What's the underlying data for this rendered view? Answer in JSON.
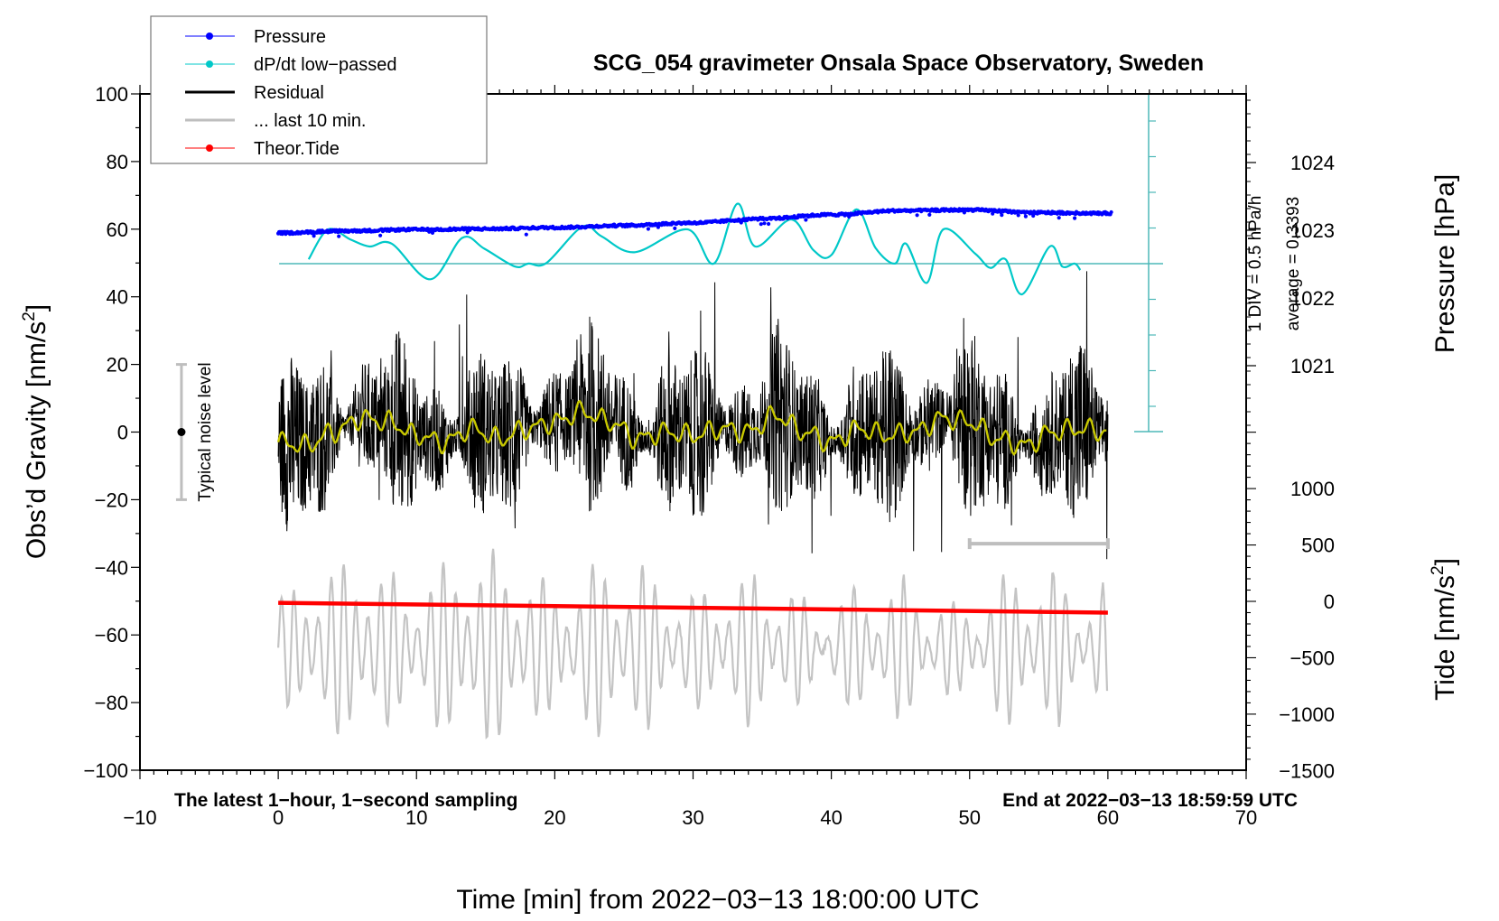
{
  "chart_data": {
    "type": "line",
    "title": "SCG_054 gravimeter Onsala Space Observatory, Sweden",
    "xlabel": "Time [min] from 2022−03−13 18:00:00 UTC",
    "ylabel_left": "Obs’d Gravity [nm/s²]",
    "ylabel_right_top": "Pressure [hPa]",
    "ylabel_right_bottom": "Tide [nm/s²]",
    "xlim": [
      -10,
      70
    ],
    "ylim_left": [
      -100,
      100
    ],
    "pressure_axis": {
      "ticks": [
        1024,
        1023,
        1022,
        1021
      ],
      "range_hpa": [
        1020.0,
        1025.0
      ]
    },
    "tide_axis": {
      "ticks": [
        1000,
        500,
        0,
        -500,
        -1000,
        -1500
      ],
      "range": [
        -1500,
        1500
      ]
    },
    "x_ticks": [
      "−10",
      "0",
      "10",
      "20",
      "30",
      "40",
      "50",
      "60",
      "70"
    ],
    "x_tick_values": [
      -10,
      0,
      10,
      20,
      30,
      40,
      50,
      60,
      70
    ],
    "y_ticks_left": [
      "100",
      "80",
      "60",
      "40",
      "20",
      "0",
      "−20",
      "−40",
      "−60",
      "−80",
      "−100"
    ],
    "y_tick_values_left": [
      100,
      80,
      60,
      40,
      20,
      0,
      -20,
      -40,
      -60,
      -80,
      -100
    ],
    "y_ticks_pressure": [
      "1024",
      "1023",
      "1022",
      "1021"
    ],
    "y_ticks_tide": [
      "1000",
      "500",
      "0",
      "−500",
      "−1000",
      "−1500"
    ],
    "legend": {
      "placement": "top-left",
      "entries": [
        {
          "label": "Pressure",
          "color": "#0000ff",
          "marker": "dot"
        },
        {
          "label": "dP/dt low−passed",
          "color": "#00c8c8",
          "marker": "dot"
        },
        {
          "label": "Residual",
          "color": "#000000",
          "marker": "line"
        },
        {
          "label": "... last 10 min.",
          "color": "#bebebe",
          "marker": "line"
        },
        {
          "label": "Theor.Tide",
          "color": "#ff0000",
          "marker": "dot"
        }
      ]
    },
    "annotations": {
      "bottom_left": "The latest 1−hour, 1−second sampling",
      "bottom_right": "End at 2022−03−13 18:59:59 UTC",
      "dpdt_scale": "1 DIV = 0.5 hPa/h",
      "dpdt_average": "average = 0.3393",
      "noise_label": "Typical noise level"
    },
    "noise_bar": {
      "x": -7,
      "center": 0,
      "low": -20,
      "high": 20
    },
    "last10_bar": {
      "x_start": 50,
      "x_end": 60,
      "y": -33
    },
    "series": [
      {
        "name": "Pressure",
        "unit": "hPa",
        "color": "#0000ff",
        "x": [
          0,
          5,
          10,
          15,
          20,
          25,
          30,
          35,
          40,
          45,
          50,
          55,
          60
        ],
        "values": [
          1022.96,
          1022.99,
          1023.01,
          1023.02,
          1023.04,
          1023.07,
          1023.11,
          1023.17,
          1023.23,
          1023.29,
          1023.3,
          1023.26,
          1023.25
        ]
      },
      {
        "name": "dP/dt low-passed",
        "unit": "hPa/h",
        "color": "#00c8c8",
        "x": [
          2.2,
          3.6,
          5.2,
          6.6,
          8.2,
          11.0,
          13.3,
          14.9,
          17.1,
          18.1,
          19.4,
          22.0,
          23.4,
          25.8,
          29.6,
          31.5,
          33.2,
          34.5,
          37.1,
          38.7,
          40.0,
          41.8,
          43.2,
          44.6,
          45.4,
          46.9,
          48.1,
          50.4,
          51.5,
          52.6,
          53.8,
          55.8,
          56.7,
          57.6,
          58.0
        ],
        "values": [
          0.4,
          0.82,
          0.68,
          0.58,
          0.62,
          0.12,
          0.7,
          0.55,
          0.3,
          0.34,
          0.35,
          0.86,
          0.72,
          0.5,
          0.82,
          0.34,
          1.18,
          0.58,
          0.96,
          0.53,
          0.46,
          1.1,
          0.56,
          0.34,
          0.62,
          0.07,
          0.82,
          0.48,
          0.28,
          0.4,
          -0.09,
          0.58,
          0.3,
          0.34,
          0.25
        ]
      },
      {
        "name": "Residual (low-passed trend)",
        "unit": "nm/s²",
        "color": "#c8c800",
        "x": [
          0,
          2,
          4,
          6,
          8,
          10,
          12,
          14,
          16,
          18,
          20,
          22,
          24,
          26,
          28,
          30,
          32,
          34,
          36,
          38,
          40,
          42,
          44,
          46,
          48,
          50,
          52,
          54,
          56,
          58,
          60
        ],
        "values": [
          -3,
          -4,
          0,
          4,
          3,
          -1,
          -3,
          1,
          -2,
          1,
          3,
          6,
          3,
          -2,
          0,
          -1,
          1,
          0,
          5,
          0,
          -3,
          1,
          -1,
          0,
          4,
          3,
          -2,
          -4,
          0,
          1,
          0
        ]
      },
      {
        "name": "Theor.Tide",
        "unit": "nm/s²",
        "color": "#ff0000",
        "x": [
          0,
          60
        ],
        "values": [
          -13,
          -100
        ]
      }
    ],
    "residual_envelope": {
      "typical_amplitude_nm_s2": 20,
      "peak_max": 49,
      "peak_min": -41
    }
  }
}
